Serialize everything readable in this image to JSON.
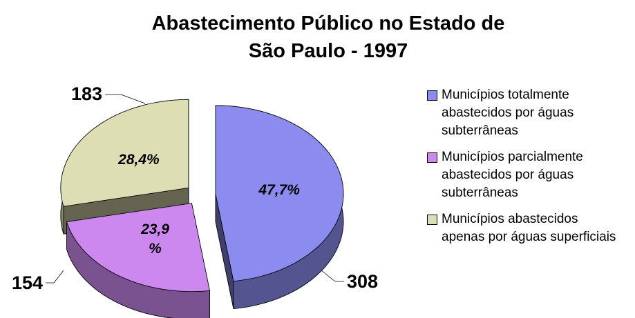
{
  "chart_data": {
    "type": "pie",
    "title": "Abastecimento Público no Estado de São Paulo - 1997",
    "labels": [
      "Municípios totalmente abastecidos por águas subterrâneas",
      "Municípios parcialmente abastecidos por águas subterrâneas",
      "Municípios abastecidos apenas por águas superficiais"
    ],
    "values": [
      308,
      154,
      183
    ],
    "percentages": [
      47.7,
      23.9,
      28.4
    ],
    "percentage_labels": [
      "47,7%",
      "23,9 %",
      "28,4%"
    ],
    "colors": [
      "#8c8cf0",
      "#cc88ee",
      "#dedeb4"
    ],
    "legend": "right"
  }
}
